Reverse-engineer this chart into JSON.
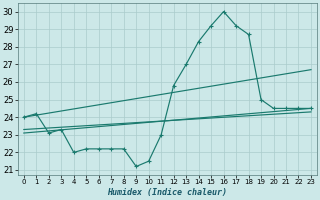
{
  "bg_color": "#cce8e8",
  "grid_color": "#aacccc",
  "line_color": "#1a7a6e",
  "xlabel": "Humidex (Indice chaleur)",
  "xlim": [
    -0.5,
    23.5
  ],
  "ylim": [
    20.7,
    30.5
  ],
  "xticks": [
    0,
    1,
    2,
    3,
    4,
    5,
    6,
    7,
    8,
    9,
    10,
    11,
    12,
    13,
    14,
    15,
    16,
    17,
    18,
    19,
    20,
    21,
    22,
    23
  ],
  "yticks": [
    21,
    22,
    23,
    24,
    25,
    26,
    27,
    28,
    29,
    30
  ],
  "main_x": [
    0,
    1,
    2,
    3,
    4,
    5,
    6,
    7,
    8,
    9,
    10,
    11,
    12,
    13,
    14,
    15,
    16,
    17,
    18,
    19,
    20,
    21,
    22,
    23
  ],
  "main_y": [
    24.0,
    24.2,
    23.1,
    23.3,
    22.0,
    22.2,
    22.2,
    22.2,
    22.2,
    21.2,
    21.5,
    23.0,
    25.8,
    27.0,
    28.3,
    29.2,
    30.0,
    29.2,
    28.7,
    25.0,
    24.5,
    24.5,
    24.5,
    24.5
  ],
  "line2_x": [
    0,
    23
  ],
  "line2_y": [
    24.0,
    26.7
  ],
  "line3_x": [
    0,
    23
  ],
  "line3_y": [
    23.1,
    24.5
  ],
  "line4_x": [
    0,
    23
  ],
  "line4_y": [
    23.3,
    24.3
  ]
}
